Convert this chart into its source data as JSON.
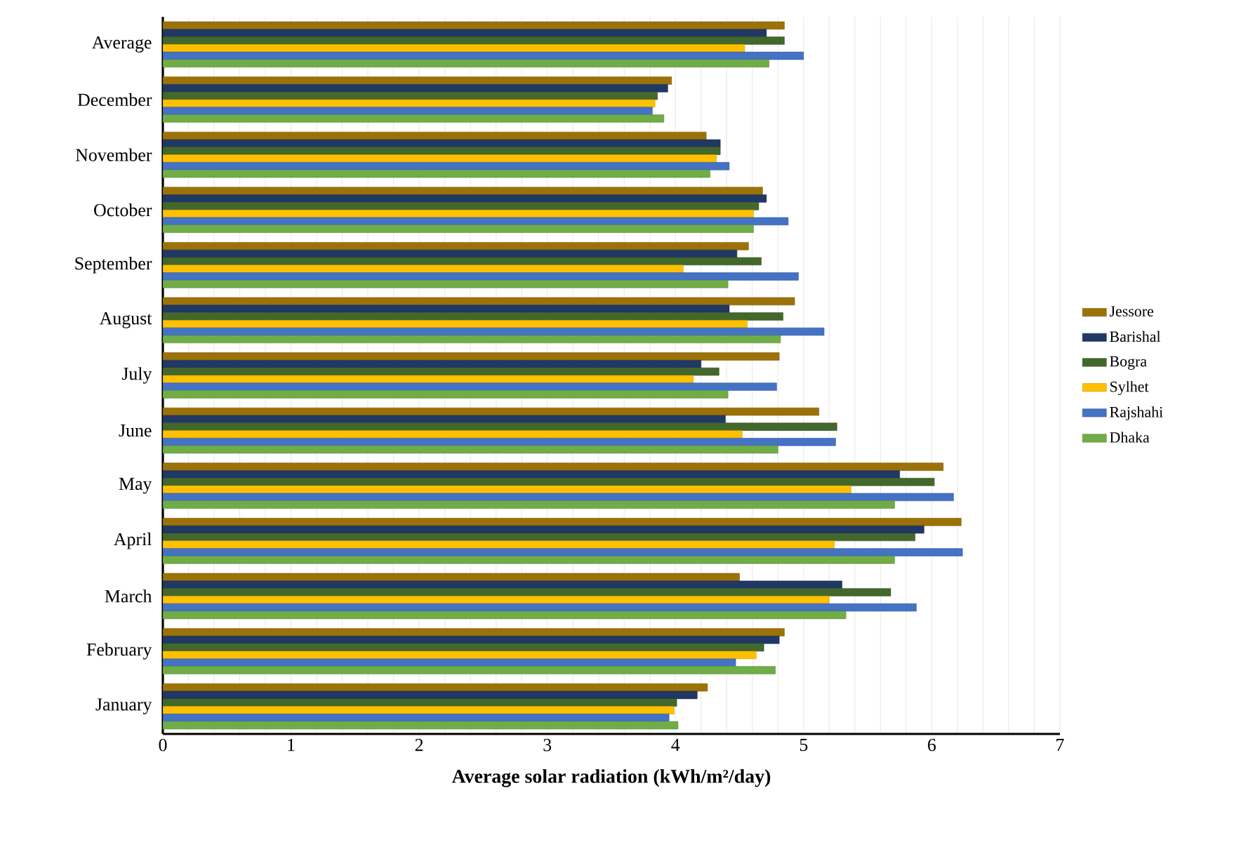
{
  "chart_data": {
    "type": "bar",
    "orientation": "horizontal",
    "xlabel": "Average solar radiation (kWh/m²/day)",
    "categories": [
      "Average",
      "December",
      "November",
      "October",
      "September",
      "August",
      "July",
      "June",
      "May",
      "April",
      "March",
      "February",
      "January"
    ],
    "series": [
      {
        "name": "Jessore",
        "color": "#9c7208",
        "values": [
          4.85,
          3.97,
          4.24,
          4.68,
          4.57,
          4.93,
          4.81,
          5.12,
          6.09,
          6.23,
          4.5,
          4.85,
          4.25
        ]
      },
      {
        "name": "Barishal",
        "color": "#203864",
        "values": [
          4.71,
          3.94,
          4.35,
          4.71,
          4.48,
          4.42,
          4.2,
          4.39,
          5.75,
          5.94,
          5.3,
          4.81,
          4.17
        ]
      },
      {
        "name": "Bogra",
        "color": "#43682b",
        "values": [
          4.85,
          3.86,
          4.35,
          4.65,
          4.67,
          4.84,
          4.34,
          5.26,
          6.02,
          5.87,
          5.68,
          4.69,
          4.01
        ]
      },
      {
        "name": "Sylhet",
        "color": "#ffc000",
        "values": [
          4.54,
          3.84,
          4.32,
          4.61,
          4.06,
          4.56,
          4.14,
          4.52,
          5.37,
          5.24,
          5.2,
          4.63,
          3.99
        ]
      },
      {
        "name": "Rajshahi",
        "color": "#4472c4",
        "values": [
          5.0,
          3.82,
          4.42,
          4.88,
          4.96,
          5.16,
          4.79,
          5.25,
          6.17,
          6.24,
          5.88,
          4.47,
          3.95
        ]
      },
      {
        "name": "Dhaka",
        "color": "#70ad47",
        "values": [
          4.73,
          3.91,
          4.27,
          4.61,
          4.41,
          4.82,
          4.41,
          4.8,
          5.71,
          5.71,
          5.33,
          4.78,
          4.02
        ]
      }
    ],
    "xlim": [
      0,
      7
    ],
    "xticks": [
      0,
      {
        "value": 0.2,
        "label": null
      },
      {
        "value": 0.4,
        "label": null
      },
      {
        "value": 0.6,
        "label": null
      },
      {
        "value": 0.8,
        "label": null
      },
      1,
      {
        "value": 1.2,
        "label": null
      },
      {
        "value": 1.4,
        "label": null
      },
      {
        "value": 1.6,
        "label": null
      },
      {
        "value": 1.8,
        "label": null
      },
      2,
      {
        "value": 2.2,
        "label": null
      },
      {
        "value": 2.4,
        "label": null
      },
      {
        "value": 2.6,
        "label": null
      },
      {
        "value": 2.8,
        "label": null
      },
      3,
      {
        "value": 3.2,
        "label": null
      },
      {
        "value": 3.4,
        "label": null
      },
      {
        "value": 3.6,
        "label": null
      },
      {
        "value": 3.8,
        "label": null
      },
      4,
      {
        "value": 4.2,
        "label": null
      },
      {
        "value": 4.4,
        "label": null
      },
      {
        "value": 4.6,
        "label": null
      },
      {
        "value": 4.8,
        "label": null
      },
      5,
      {
        "value": 5.2,
        "label": null
      },
      {
        "value": 5.4,
        "label": null
      },
      {
        "value": 5.6,
        "label": null
      },
      {
        "value": 5.8,
        "label": null
      },
      6,
      {
        "value": 6.2,
        "label": null
      },
      {
        "value": 6.4,
        "label": null
      },
      {
        "value": 6.6,
        "label": null
      },
      {
        "value": 6.8,
        "label": null
      },
      7
    ],
    "grid": "x",
    "legend": "right"
  }
}
